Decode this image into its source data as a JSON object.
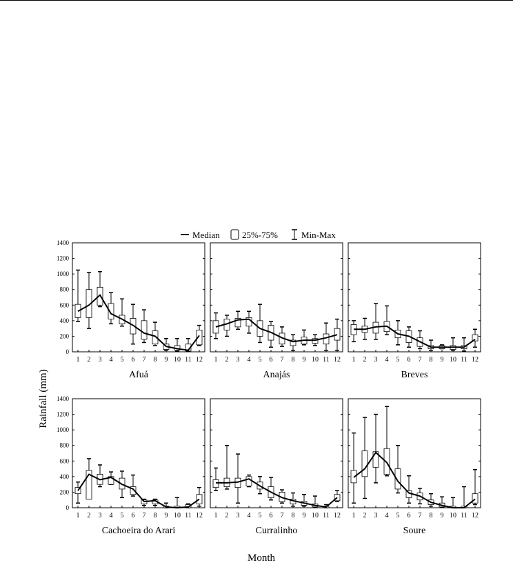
{
  "legend": {
    "median_label": "Median",
    "box_label": "25%-75%",
    "whisker_label": "Min-Max"
  },
  "y_axis_label": "Rainfall (mm)",
  "x_axis_label": "Month",
  "chart_data": {
    "type": "box",
    "ylim": [
      0,
      1400
    ],
    "yticks": [
      0,
      200,
      400,
      600,
      800,
      1000,
      1200,
      1400
    ],
    "categories": [
      "1",
      "2",
      "3",
      "4",
      "5",
      "6",
      "7",
      "8",
      "9",
      "10",
      "11",
      "12"
    ],
    "legend_position": "top-center",
    "panels": [
      {
        "title": "Afuá",
        "median": [
          520,
          600,
          730,
          490,
          420,
          340,
          240,
          200,
          70,
          40,
          20,
          210
        ],
        "q1": [
          440,
          440,
          600,
          420,
          360,
          230,
          160,
          100,
          30,
          20,
          10,
          90
        ],
        "q3": [
          610,
          800,
          830,
          620,
          470,
          430,
          400,
          270,
          100,
          80,
          100,
          280
        ],
        "min": [
          390,
          300,
          580,
          360,
          330,
          100,
          120,
          80,
          20,
          10,
          10,
          80
        ],
        "max": [
          1050,
          1020,
          1030,
          760,
          680,
          610,
          540,
          380,
          170,
          170,
          170,
          340
        ]
      },
      {
        "title": "Anajás",
        "median": [
          320,
          360,
          410,
          420,
          300,
          250,
          180,
          130,
          150,
          150,
          180,
          220
        ],
        "q1": [
          240,
          280,
          320,
          330,
          200,
          150,
          100,
          80,
          100,
          110,
          100,
          150
        ],
        "q3": [
          400,
          420,
          430,
          440,
          400,
          340,
          240,
          150,
          190,
          170,
          230,
          300
        ],
        "min": [
          170,
          200,
          290,
          240,
          120,
          60,
          70,
          20,
          90,
          80,
          20,
          20
        ],
        "max": [
          500,
          470,
          520,
          520,
          610,
          390,
          320,
          220,
          280,
          220,
          370,
          420
        ]
      },
      {
        "title": "Breves",
        "median": [
          290,
          290,
          320,
          330,
          230,
          200,
          130,
          60,
          60,
          60,
          60,
          160
        ],
        "q1": [
          220,
          250,
          240,
          260,
          180,
          120,
          70,
          40,
          40,
          30,
          40,
          140
        ],
        "q3": [
          350,
          330,
          380,
          390,
          280,
          270,
          180,
          80,
          80,
          80,
          80,
          220
        ],
        "min": [
          130,
          160,
          160,
          220,
          90,
          60,
          40,
          20,
          40,
          20,
          10,
          60
        ],
        "max": [
          400,
          430,
          620,
          590,
          400,
          320,
          270,
          150,
          90,
          180,
          180,
          290
        ]
      },
      {
        "title": "Cachoeira do Arari",
        "median": [
          220,
          430,
          360,
          390,
          300,
          240,
          80,
          90,
          10,
          0,
          10,
          110
        ],
        "q1": [
          180,
          110,
          300,
          300,
          240,
          170,
          50,
          50,
          0,
          0,
          0,
          50
        ],
        "q3": [
          260,
          480,
          430,
          400,
          380,
          270,
          100,
          100,
          20,
          20,
          40,
          170
        ],
        "min": [
          60,
          120,
          270,
          300,
          130,
          150,
          30,
          30,
          0,
          0,
          0,
          20
        ],
        "max": [
          330,
          630,
          550,
          460,
          470,
          420,
          110,
          110,
          60,
          130,
          50,
          260
        ]
      },
      {
        "title": "Curralinho",
        "median": [
          320,
          320,
          330,
          370,
          280,
          200,
          130,
          90,
          60,
          30,
          10,
          130
        ],
        "q1": [
          260,
          270,
          260,
          280,
          240,
          130,
          80,
          50,
          30,
          10,
          0,
          90
        ],
        "q3": [
          360,
          380,
          380,
          400,
          330,
          270,
          200,
          110,
          80,
          50,
          20,
          170
        ],
        "min": [
          220,
          240,
          60,
          270,
          180,
          100,
          60,
          20,
          20,
          10,
          0,
          80
        ],
        "max": [
          510,
          800,
          690,
          420,
          400,
          390,
          230,
          190,
          170,
          150,
          40,
          220
        ]
      },
      {
        "title": "Soure",
        "median": [
          390,
          500,
          710,
          580,
          340,
          190,
          150,
          70,
          30,
          0,
          0,
          110
        ],
        "q1": [
          320,
          400,
          520,
          430,
          240,
          130,
          100,
          40,
          10,
          0,
          0,
          60
        ],
        "q3": [
          480,
          730,
          720,
          760,
          500,
          220,
          190,
          100,
          60,
          20,
          20,
          180
        ],
        "min": [
          60,
          120,
          320,
          410,
          190,
          60,
          50,
          20,
          10,
          0,
          0,
          40
        ],
        "max": [
          960,
          1160,
          1200,
          1300,
          800,
          410,
          250,
          180,
          140,
          130,
          270,
          490
        ]
      }
    ]
  }
}
